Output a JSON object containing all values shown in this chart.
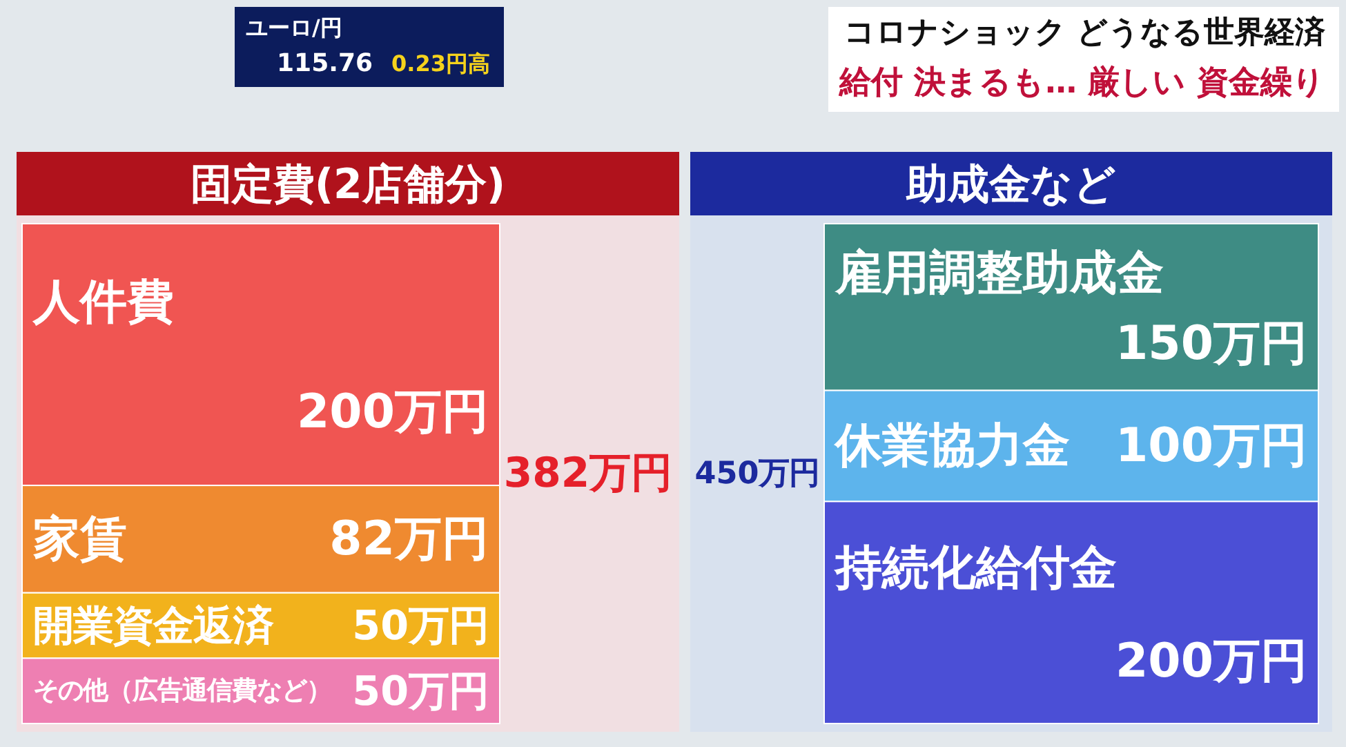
{
  "chart_data": [
    {
      "type": "other",
      "title": "コロナショック どうなる世界経済",
      "subtitle": "給付 決まるも… 厳しい 資金繰り",
      "annotations": [
        "ユーロ/円",
        "115.76",
        "0.23円高"
      ]
    },
    {
      "type": "bar",
      "title": "固定費(2店舗分)",
      "categories": [
        null
      ],
      "stacked": true,
      "totals": [
        "382万円"
      ],
      "series": [
        {
          "name": "その他（広告通信費など）",
          "color": "#ee7fb2",
          "values": [
            50
          ],
          "value_labels": [
            "50万円"
          ]
        },
        {
          "name": "開業資金返済",
          "color": "#f2b21c",
          "values": [
            50
          ],
          "value_labels": [
            "50万円"
          ]
        },
        {
          "name": "家賃",
          "color": "#ef8a30",
          "values": [
            82
          ],
          "value_labels": [
            "82万円"
          ]
        },
        {
          "name": "人件費",
          "color": "#f05552",
          "values": [
            200
          ],
          "value_labels": [
            "200万円"
          ]
        }
      ]
    },
    {
      "type": "bar",
      "title": "助成金など",
      "categories": [
        null
      ],
      "stacked": true,
      "totals": [
        "450万円"
      ],
      "series": [
        {
          "name": "持続化給付金",
          "color": "#4b4fd6",
          "values": [
            200
          ],
          "value_labels": [
            "200万円"
          ]
        },
        {
          "name": "休業協力金",
          "color": "#5db4ec",
          "values": [
            100
          ],
          "value_labels": [
            "100万円"
          ]
        },
        {
          "name": "雇用調整助成金",
          "color": "#3e8c84",
          "values": [
            150
          ],
          "value_labels": [
            "150万円"
          ]
        }
      ]
    }
  ]
}
